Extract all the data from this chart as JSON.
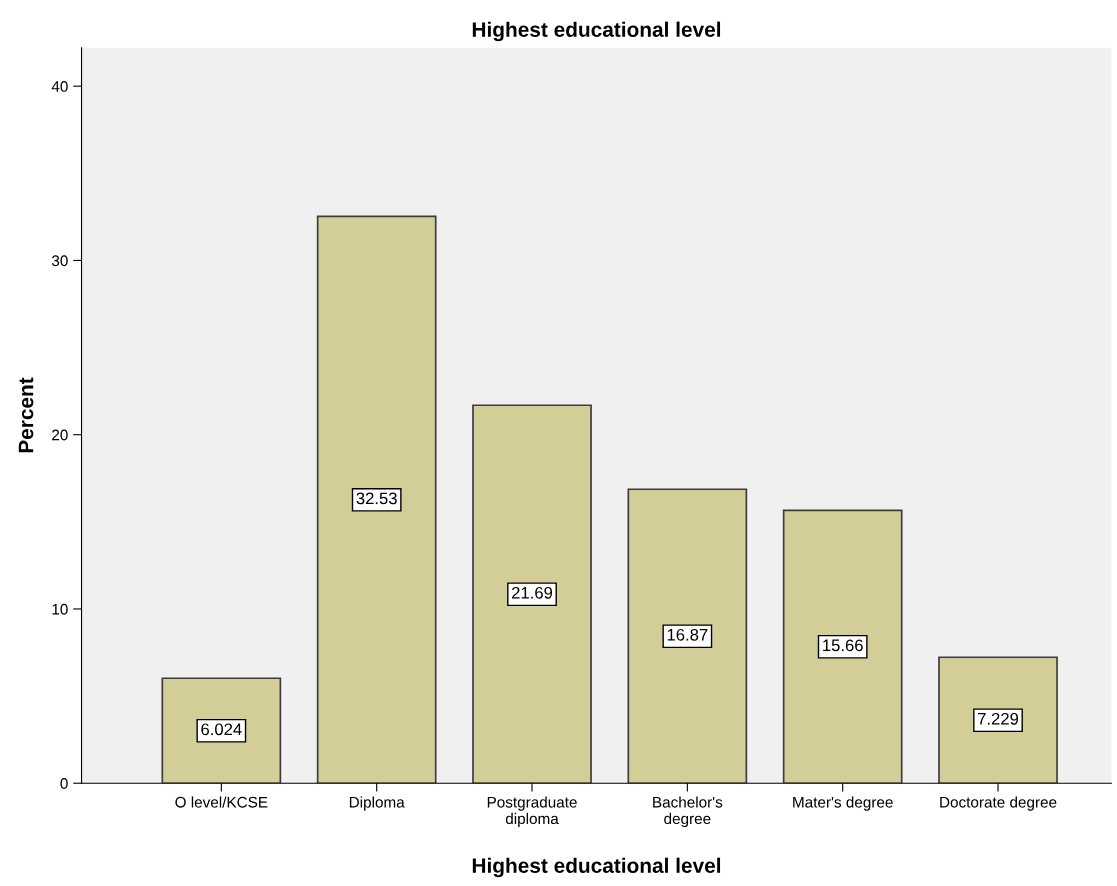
{
  "chart_data": {
    "type": "bar",
    "title": "Highest educational level",
    "xlabel": "Highest educational level",
    "ylabel": "Percent",
    "categories": [
      "O level/KCSE",
      "Diploma",
      "Postgraduate\ndiploma",
      "Bachelor's\ndegree",
      "Mater's degree",
      "Doctorate degree"
    ],
    "values": [
      6.024,
      32.53,
      21.69,
      16.87,
      15.66,
      7.229
    ],
    "color": "#d3ce97",
    "ylim": [
      0,
      42.2
    ],
    "yticks": [
      0,
      10,
      20,
      30,
      40
    ],
    "grid": false,
    "data_labels": true
  }
}
